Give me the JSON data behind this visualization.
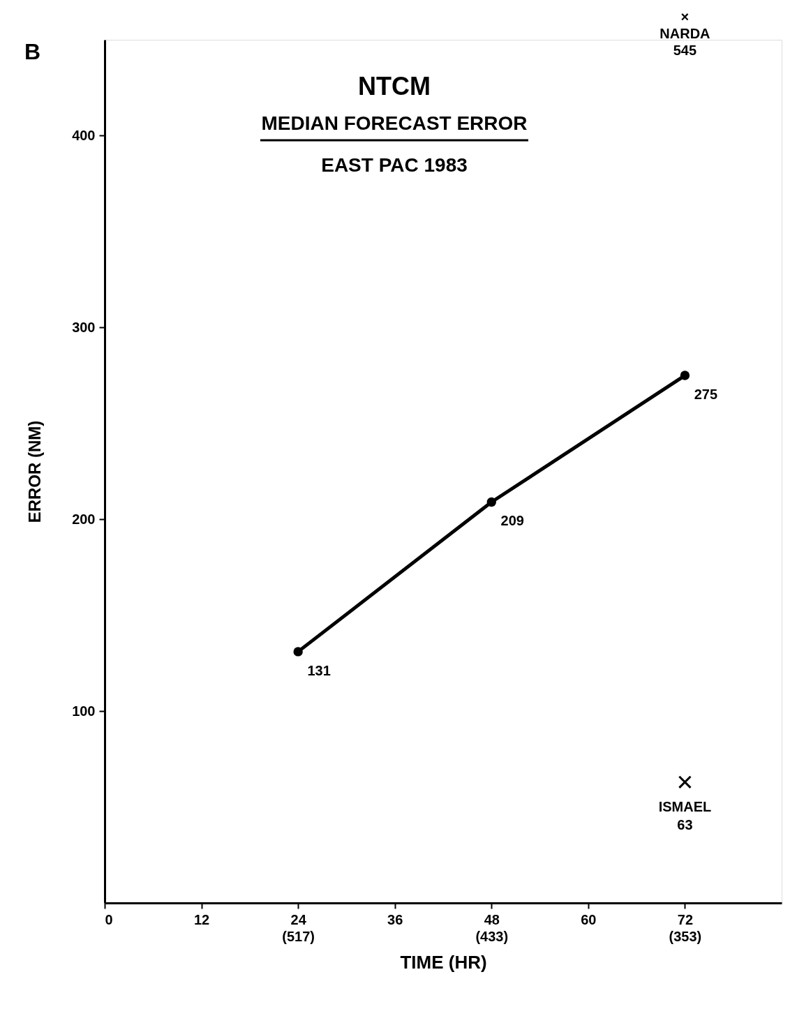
{
  "chart_data": {
    "type": "line",
    "title": "NTCM",
    "subtitle": [
      "MEDIAN FORECAST ERROR",
      "EAST PAC 1983"
    ],
    "xlabel": "TIME (HR)",
    "ylabel": "ERROR (NM)",
    "x": [
      24,
      48,
      72
    ],
    "series": [
      {
        "color": "#000000",
        "values": [
          131,
          209,
          275
        ],
        "marker": "circle",
        "data_labels": true
      },
      {
        "type": "scatter",
        "name": "ISMAEL",
        "color": "#000000",
        "x": [
          72
        ],
        "values": [
          63
        ],
        "marker": "cross",
        "value_labels": [
          "63"
        ]
      }
    ],
    "xlim": [
      0,
      84
    ],
    "ylim": [
      0,
      450
    ],
    "xticks": [
      0,
      12,
      {
        "value": 24,
        "label": "24\n(517)"
      },
      36,
      {
        "value": 48,
        "label": "48\n(433)"
      },
      60,
      {
        "value": 72,
        "label": "72\n(353)"
      }
    ],
    "yticks": [
      100,
      200,
      300,
      400
    ],
    "grid": false,
    "legend": false,
    "annotations": [
      "B",
      "×\nNARDA\n545"
    ]
  }
}
